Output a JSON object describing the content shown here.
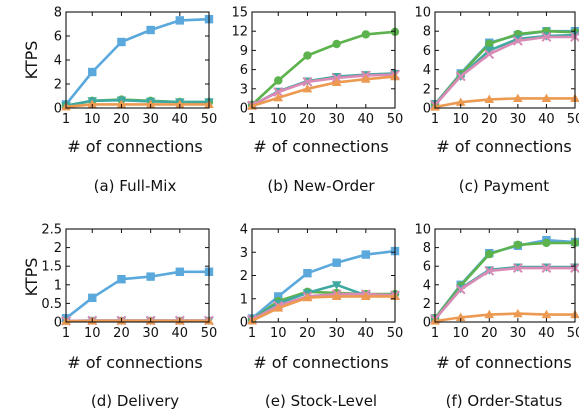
{
  "colors": {
    "blue": "#5aa8dc",
    "green": "#5cb24c",
    "teal": "#3fa8a0",
    "orange": "#ec9a52",
    "pink": "#d98ab5"
  },
  "chart_data": [
    {
      "type": "line",
      "caption": "(a) Full-Mix",
      "ylabel": "KTPS",
      "xlabel": "# of connections",
      "x": [
        1,
        10,
        20,
        30,
        40,
        50
      ],
      "xticks": [
        "1",
        "10",
        "20",
        "30",
        "40",
        "50"
      ],
      "ylim": [
        0,
        8
      ],
      "yticks": [
        0,
        2,
        4,
        6,
        8
      ],
      "yticklabels": [
        "0",
        "2",
        "4",
        "6",
        "8"
      ],
      "series": [
        {
          "color": "blue",
          "marker": "square",
          "values": [
            0.3,
            3.0,
            5.5,
            6.5,
            7.3,
            7.4
          ]
        },
        {
          "color": "green",
          "marker": "circle",
          "values": [
            0.2,
            0.6,
            0.7,
            0.6,
            0.5,
            0.5
          ]
        },
        {
          "color": "teal",
          "marker": "down-triangle",
          "values": [
            0.2,
            0.6,
            0.65,
            0.55,
            0.5,
            0.5
          ]
        },
        {
          "color": "orange",
          "marker": "up-triangle",
          "values": [
            0.1,
            0.3,
            0.3,
            0.3,
            0.3,
            0.3
          ]
        }
      ]
    },
    {
      "type": "line",
      "caption": "(b) New-Order",
      "ylabel": "",
      "xlabel": "# of connections",
      "x": [
        1,
        10,
        20,
        30,
        40,
        50
      ],
      "xticks": [
        "1",
        "10",
        "20",
        "30",
        "40",
        "50"
      ],
      "ylim": [
        0,
        15
      ],
      "yticks": [
        0,
        3,
        6,
        9,
        12,
        15
      ],
      "yticklabels": [
        "0",
        "3",
        "6",
        "9",
        "12",
        "15"
      ],
      "series": [
        {
          "color": "green",
          "marker": "circle",
          "values": [
            0.5,
            4.3,
            8.2,
            10.0,
            11.5,
            11.9
          ]
        },
        {
          "color": "teal",
          "marker": "down-triangle",
          "values": [
            0.4,
            2.6,
            4.2,
            4.9,
            5.2,
            5.4
          ]
        },
        {
          "color": "pink",
          "marker": "x",
          "values": [
            0.4,
            2.5,
            4.1,
            4.7,
            5.1,
            5.2
          ]
        },
        {
          "color": "orange",
          "marker": "up-triangle",
          "values": [
            0.3,
            1.6,
            3.0,
            4.0,
            4.5,
            4.9
          ]
        }
      ]
    },
    {
      "type": "line",
      "caption": "(c) Payment",
      "ylabel": "",
      "xlabel": "# of connections",
      "x": [
        1,
        10,
        20,
        30,
        40,
        50
      ],
      "xticks": [
        "1",
        "10",
        "20",
        "30",
        "40",
        "50"
      ],
      "ylim": [
        0,
        10
      ],
      "yticks": [
        0,
        2,
        4,
        6,
        8,
        10
      ],
      "yticklabels": [
        "0",
        "2",
        "4",
        "6",
        "8",
        "10"
      ],
      "series": [
        {
          "color": "blue",
          "marker": "square",
          "values": [
            0.4,
            3.6,
            6.8,
            7.6,
            8.0,
            8.0
          ]
        },
        {
          "color": "green",
          "marker": "circle",
          "values": [
            0.4,
            3.5,
            6.7,
            7.7,
            8.0,
            7.9
          ]
        },
        {
          "color": "teal",
          "marker": "down-triangle",
          "values": [
            0.4,
            3.3,
            6.0,
            7.2,
            7.5,
            7.6
          ]
        },
        {
          "color": "pink",
          "marker": "x",
          "values": [
            0.3,
            3.3,
            5.6,
            7.0,
            7.4,
            7.4
          ]
        },
        {
          "color": "orange",
          "marker": "up-triangle",
          "values": [
            0.1,
            0.6,
            0.9,
            1.0,
            1.0,
            1.0
          ]
        }
      ]
    },
    {
      "type": "line",
      "caption": "(d) Delivery",
      "ylabel": "KTPS",
      "xlabel": "# of connections",
      "x": [
        1,
        10,
        20,
        30,
        40,
        50
      ],
      "xticks": [
        "1",
        "10",
        "20",
        "30",
        "40",
        "50"
      ],
      "ylim": [
        0,
        2.5
      ],
      "yticks": [
        0,
        0.5,
        1,
        1.5,
        2,
        2.5
      ],
      "yticklabels": [
        "0",
        "0.5",
        "1",
        "1.5",
        "2",
        "2.5"
      ],
      "series": [
        {
          "color": "blue",
          "marker": "square",
          "values": [
            0.1,
            0.65,
            1.15,
            1.22,
            1.35,
            1.35
          ]
        },
        {
          "color": "teal",
          "marker": "down-triangle",
          "values": [
            0.03,
            0.04,
            0.04,
            0.04,
            0.04,
            0.04
          ]
        },
        {
          "color": "pink",
          "marker": "x",
          "values": [
            0.03,
            0.04,
            0.04,
            0.04,
            0.04,
            0.04
          ]
        },
        {
          "color": "orange",
          "marker": "up-triangle",
          "values": [
            0.02,
            0.03,
            0.03,
            0.03,
            0.03,
            0.03
          ]
        }
      ]
    },
    {
      "type": "line",
      "caption": "(e) Stock-Level",
      "ylabel": "",
      "xlabel": "# of connections",
      "x": [
        1,
        10,
        20,
        30,
        40,
        50
      ],
      "xticks": [
        "1",
        "10",
        "20",
        "30",
        "40",
        "50"
      ],
      "ylim": [
        0,
        4
      ],
      "yticks": [
        0,
        1,
        2,
        3,
        4
      ],
      "yticklabels": [
        "0",
        "1",
        "2",
        "3",
        "4"
      ],
      "series": [
        {
          "color": "blue",
          "marker": "square",
          "values": [
            0.15,
            1.1,
            2.1,
            2.55,
            2.9,
            3.05
          ]
        },
        {
          "color": "green",
          "marker": "circle",
          "values": [
            0.1,
            0.9,
            1.3,
            1.25,
            1.2,
            1.2
          ]
        },
        {
          "color": "teal",
          "marker": "down-triangle",
          "values": [
            0.1,
            0.8,
            1.25,
            1.6,
            1.15,
            1.15
          ]
        },
        {
          "color": "pink",
          "marker": "x",
          "values": [
            0.1,
            0.7,
            1.1,
            1.2,
            1.2,
            1.15
          ]
        },
        {
          "color": "orange",
          "marker": "up-triangle",
          "values": [
            0.05,
            0.6,
            1.05,
            1.1,
            1.1,
            1.1
          ]
        }
      ]
    },
    {
      "type": "line",
      "caption": "(f) Order-Status",
      "ylabel": "",
      "xlabel": "# of connections",
      "x": [
        1,
        10,
        20,
        30,
        40,
        50
      ],
      "xticks": [
        "1",
        "10",
        "20",
        "30",
        "40",
        "50"
      ],
      "ylim": [
        0,
        10
      ],
      "yticks": [
        0,
        2,
        4,
        6,
        8,
        10
      ],
      "yticklabels": [
        "0",
        "2",
        "4",
        "6",
        "8",
        "10"
      ],
      "series": [
        {
          "color": "blue",
          "marker": "square",
          "values": [
            0.4,
            4.0,
            7.4,
            8.2,
            8.8,
            8.6
          ]
        },
        {
          "color": "green",
          "marker": "circle",
          "values": [
            0.4,
            3.9,
            7.3,
            8.3,
            8.5,
            8.5
          ]
        },
        {
          "color": "teal",
          "marker": "down-triangle",
          "values": [
            0.3,
            3.6,
            5.6,
            5.9,
            5.9,
            5.9
          ]
        },
        {
          "color": "pink",
          "marker": "x",
          "values": [
            0.3,
            3.5,
            5.5,
            5.8,
            5.8,
            5.8
          ]
        },
        {
          "color": "orange",
          "marker": "up-triangle",
          "values": [
            0.1,
            0.5,
            0.8,
            0.9,
            0.8,
            0.8
          ]
        }
      ]
    }
  ]
}
